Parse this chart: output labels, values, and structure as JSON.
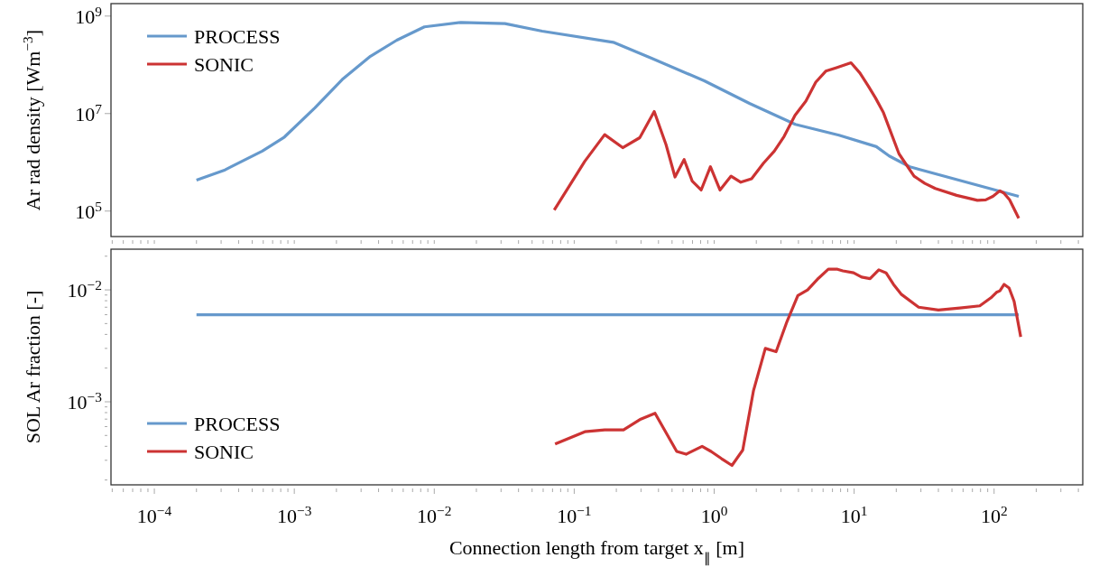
{
  "chart_data": [
    {
      "type": "line",
      "ylabel": "Ar rad density [Wm$^{−3}$]",
      "log": "xy",
      "legend": "top left",
      "tick_labels": "y",
      "xlim": [
        4.9e-05,
        430
      ],
      "ylim": [
        30000.0,
        1800000000.0
      ],
      "xticks": [
        {
          "value": 5e-05,
          "label": null
        },
        {
          "value": 6e-05,
          "label": null
        },
        {
          "value": 7e-05,
          "label": null
        },
        {
          "value": 8e-05,
          "label": null
        },
        {
          "value": 9e-05,
          "label": null
        },
        {
          "value": 0.0001,
          "label": null
        },
        {
          "value": 0.0002,
          "label": null
        },
        {
          "value": 0.0003,
          "label": null
        },
        {
          "value": 0.0004,
          "label": null
        },
        {
          "value": 0.0005,
          "label": null
        },
        {
          "value": 0.0006,
          "label": null
        },
        {
          "value": 0.0007,
          "label": null
        },
        {
          "value": 0.0008,
          "label": null
        },
        {
          "value": 0.0009,
          "label": null
        },
        {
          "value": 0.001,
          "label": null
        },
        {
          "value": 0.002,
          "label": null
        },
        {
          "value": 0.003,
          "label": null
        },
        {
          "value": 0.004,
          "label": null
        },
        {
          "value": 0.005,
          "label": null
        },
        {
          "value": 0.006,
          "label": null
        },
        {
          "value": 0.007,
          "label": null
        },
        {
          "value": 0.008,
          "label": null
        },
        {
          "value": 0.009,
          "label": null
        },
        {
          "value": 0.01,
          "label": null
        },
        {
          "value": 0.02,
          "label": null
        },
        {
          "value": 0.03,
          "label": null
        },
        {
          "value": 0.04,
          "label": null
        },
        {
          "value": 0.05,
          "label": null
        },
        {
          "value": 0.06,
          "label": null
        },
        {
          "value": 0.07,
          "label": null
        },
        {
          "value": 0.08,
          "label": null
        },
        {
          "value": 0.09,
          "label": null
        },
        {
          "value": 0.1,
          "label": null
        },
        {
          "value": 0.2,
          "label": null
        },
        {
          "value": 0.3,
          "label": null
        },
        {
          "value": 0.4,
          "label": null
        },
        {
          "value": 0.5,
          "label": null
        },
        {
          "value": 0.6,
          "label": null
        },
        {
          "value": 0.7,
          "label": null
        },
        {
          "value": 0.8,
          "label": null
        },
        {
          "value": 0.9,
          "label": null
        },
        {
          "value": 1,
          "label": null
        },
        {
          "value": 2,
          "label": null
        },
        {
          "value": 3,
          "label": null
        },
        {
          "value": 4,
          "label": null
        },
        {
          "value": 5,
          "label": null
        },
        {
          "value": 6,
          "label": null
        },
        {
          "value": 7,
          "label": null
        },
        {
          "value": 8,
          "label": null
        },
        {
          "value": 9,
          "label": null
        },
        {
          "value": 10,
          "label": null
        },
        {
          "value": 20,
          "label": null
        },
        {
          "value": 30,
          "label": null
        },
        {
          "value": 40,
          "label": null
        },
        {
          "value": 50,
          "label": null
        },
        {
          "value": 60,
          "label": null
        },
        {
          "value": 70,
          "label": null
        },
        {
          "value": 80,
          "label": null
        },
        {
          "value": 90,
          "label": null
        },
        {
          "value": 100,
          "label": null
        },
        {
          "value": 200,
          "label": null
        },
        {
          "value": 300,
          "label": null
        },
        {
          "value": 400,
          "label": null
        }
      ],
      "yticks": [
        {
          "value": 100000,
          "label": "10$^{5}$"
        },
        {
          "value": 10000000,
          "label": "10$^{7}$"
        },
        {
          "value": 1000000000,
          "label": "10$^{9}$"
        }
      ],
      "series": [
        {
          "name": "PROCESS",
          "color": "#6699cc",
          "x": [
            0.0002,
            0.00032,
            0.00059,
            0.00085,
            0.0014,
            0.0022,
            0.0035,
            0.0054,
            0.0085,
            0.0155,
            0.032,
            0.059,
            0.19,
            0.36,
            0.85,
            1.8,
            3.8,
            7.8,
            14.4,
            17.8,
            25,
            150
          ],
          "values": [
            430000,
            700000,
            1700000,
            3300000,
            13000000,
            50000000,
            150000000,
            320000000,
            600000000,
            740000000,
            700000000,
            490000000,
            290000000,
            135000000,
            47000000,
            16000000,
            6000000,
            3600000,
            2100000,
            1350000,
            810000,
            200000
          ]
        },
        {
          "name": "SONIC",
          "color": "#cc3333",
          "x": [
            0.072,
            0.119,
            0.165,
            0.222,
            0.294,
            0.373,
            0.453,
            0.525,
            0.61,
            0.697,
            0.807,
            0.94,
            1.1,
            1.32,
            1.55,
            1.85,
            2.25,
            2.69,
            3.16,
            3.78,
            4.52,
            5.32,
            6.27,
            7.48,
            9.5,
            11,
            12.6,
            14.2,
            16.2,
            20.9,
            26.8,
            32,
            38,
            54,
            76,
            87,
            98,
            110,
            118,
            129,
            150
          ],
          "values": [
            105000,
            1050000,
            3700000,
            2000000,
            3200000,
            11000000,
            2300000,
            500000,
            1140000,
            410000,
            270000,
            810000,
            270000,
            520000,
            390000,
            460000,
            960000,
            1700000,
            3400000,
            9200000,
            18000000,
            44000000,
            74000000,
            87000000,
            110000000,
            68000000,
            37000000,
            21000000,
            10400000,
            1500000,
            520000,
            370000,
            290000,
            210000,
            166000,
            170000,
            200000,
            260000,
            230000,
            170000,
            71000
          ]
        }
      ]
    },
    {
      "type": "line",
      "xlabel": "Connection length from target x$_{∥}$ [m]",
      "ylabel": "SOL Ar fraction [-]",
      "log": "xy",
      "legend": "bottom left",
      "xlim": [
        4.9e-05,
        430
      ],
      "ylim": [
        0.000181,
        0.0231
      ],
      "xticks": [
        {
          "value": 5e-05,
          "label": null
        },
        {
          "value": 6e-05,
          "label": null
        },
        {
          "value": 7e-05,
          "label": null
        },
        {
          "value": 8e-05,
          "label": null
        },
        {
          "value": 9e-05,
          "label": null
        },
        {
          "value": 0.0001,
          "label": "10$^{−4}$"
        },
        {
          "value": 0.0002,
          "label": null
        },
        {
          "value": 0.0003,
          "label": null
        },
        {
          "value": 0.0004,
          "label": null
        },
        {
          "value": 0.0005,
          "label": null
        },
        {
          "value": 0.0006,
          "label": null
        },
        {
          "value": 0.0007,
          "label": null
        },
        {
          "value": 0.0008,
          "label": null
        },
        {
          "value": 0.0009,
          "label": null
        },
        {
          "value": 0.001,
          "label": "10$^{−3}$"
        },
        {
          "value": 0.002,
          "label": null
        },
        {
          "value": 0.003,
          "label": null
        },
        {
          "value": 0.004,
          "label": null
        },
        {
          "value": 0.005,
          "label": null
        },
        {
          "value": 0.006,
          "label": null
        },
        {
          "value": 0.007,
          "label": null
        },
        {
          "value": 0.008,
          "label": null
        },
        {
          "value": 0.009,
          "label": null
        },
        {
          "value": 0.01,
          "label": "10$^{−2}$"
        },
        {
          "value": 0.02,
          "label": null
        },
        {
          "value": 0.03,
          "label": null
        },
        {
          "value": 0.04,
          "label": null
        },
        {
          "value": 0.05,
          "label": null
        },
        {
          "value": 0.06,
          "label": null
        },
        {
          "value": 0.07,
          "label": null
        },
        {
          "value": 0.08,
          "label": null
        },
        {
          "value": 0.09,
          "label": null
        },
        {
          "value": 0.1,
          "label": "10$^{−1}$"
        },
        {
          "value": 0.2,
          "label": null
        },
        {
          "value": 0.3,
          "label": null
        },
        {
          "value": 0.4,
          "label": null
        },
        {
          "value": 0.5,
          "label": null
        },
        {
          "value": 0.6,
          "label": null
        },
        {
          "value": 0.7,
          "label": null
        },
        {
          "value": 0.8,
          "label": null
        },
        {
          "value": 0.9,
          "label": null
        },
        {
          "value": 1,
          "label": "10$^{0}$"
        },
        {
          "value": 2,
          "label": null
        },
        {
          "value": 3,
          "label": null
        },
        {
          "value": 4,
          "label": null
        },
        {
          "value": 5,
          "label": null
        },
        {
          "value": 6,
          "label": null
        },
        {
          "value": 7,
          "label": null
        },
        {
          "value": 8,
          "label": null
        },
        {
          "value": 9,
          "label": null
        },
        {
          "value": 10,
          "label": "10$^{1}$"
        },
        {
          "value": 20,
          "label": null
        },
        {
          "value": 30,
          "label": null
        },
        {
          "value": 40,
          "label": null
        },
        {
          "value": 50,
          "label": null
        },
        {
          "value": 60,
          "label": null
        },
        {
          "value": 70,
          "label": null
        },
        {
          "value": 80,
          "label": null
        },
        {
          "value": 90,
          "label": null
        },
        {
          "value": 100,
          "label": "10$^{2}$"
        },
        {
          "value": 200,
          "label": null
        },
        {
          "value": 300,
          "label": null
        },
        {
          "value": 400,
          "label": null
        }
      ],
      "yticks": [
        {
          "value": 0.0002,
          "label": null
        },
        {
          "value": 0.0003,
          "label": null
        },
        {
          "value": 0.0004,
          "label": null
        },
        {
          "value": 0.0005,
          "label": null
        },
        {
          "value": 0.0006,
          "label": null
        },
        {
          "value": 0.0007,
          "label": null
        },
        {
          "value": 0.0008,
          "label": null
        },
        {
          "value": 0.0009,
          "label": null
        },
        {
          "value": 0.001,
          "label": "10$^{−3}$"
        },
        {
          "value": 0.002,
          "label": null
        },
        {
          "value": 0.003,
          "label": null
        },
        {
          "value": 0.004,
          "label": null
        },
        {
          "value": 0.005,
          "label": null
        },
        {
          "value": 0.006,
          "label": null
        },
        {
          "value": 0.007,
          "label": null
        },
        {
          "value": 0.008,
          "label": null
        },
        {
          "value": 0.009,
          "label": null
        },
        {
          "value": 0.01,
          "label": "10$^{−2}$"
        },
        {
          "value": 0.02,
          "label": null
        }
      ],
      "series": [
        {
          "name": "PROCESS",
          "color": "#6699cc",
          "x": [
            0.0002,
            150
          ],
          "values": [
            0.006,
            0.006
          ]
        },
        {
          "name": "SONIC",
          "color": "#cc3333",
          "x": [
            0.073,
            0.119,
            0.165,
            0.225,
            0.299,
            0.378,
            0.54,
            0.63,
            0.82,
            0.95,
            1.13,
            1.34,
            1.6,
            1.91,
            2.32,
            2.77,
            3.31,
            3.96,
            4.65,
            5.56,
            6.54,
            7.6,
            8.3,
            9.9,
            11.3,
            13,
            15,
            16.9,
            19.1,
            21.8,
            28.9,
            40,
            57,
            79,
            95,
            104,
            110,
            118,
            128,
            139,
            155
          ],
          "values": [
            0.00042,
            0.00054,
            0.00056,
            0.00056,
            0.0007,
            0.00079,
            0.00036,
            0.00034,
            0.0004,
            0.00036,
            0.00031,
            0.00027,
            0.00037,
            0.00126,
            0.003,
            0.0028,
            0.0052,
            0.0089,
            0.01,
            0.0127,
            0.0153,
            0.0153,
            0.0148,
            0.0142,
            0.013,
            0.0126,
            0.0151,
            0.0142,
            0.0112,
            0.0091,
            0.007,
            0.0066,
            0.0069,
            0.0072,
            0.0085,
            0.0095,
            0.0098,
            0.0112,
            0.0104,
            0.0079,
            0.0038
          ]
        }
      ]
    }
  ]
}
